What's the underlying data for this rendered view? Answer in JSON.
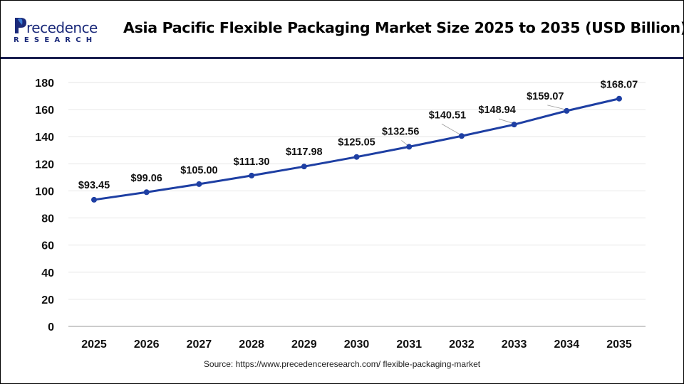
{
  "logo": {
    "name": "Precedence",
    "sub": "RESEARCH"
  },
  "title": "Asia Pacific Flexible Packaging Market Size 2025 to 2035 (USD Billion)",
  "source": "Source: https://www.precedenceresearch.com/ flexible-packaging-market",
  "colors": {
    "line": "#1e3fa3",
    "header_rule": "#1a1f4f",
    "logo": "#1b2a7a"
  },
  "chart_data": {
    "type": "line",
    "title": "Asia Pacific Flexible Packaging Market Size 2025 to 2035 (USD Billion)",
    "categories": [
      "2025",
      "2026",
      "2027",
      "2028",
      "2029",
      "2030",
      "2031",
      "2032",
      "2033",
      "2034",
      "2035"
    ],
    "values": [
      93.45,
      99.06,
      105.0,
      111.3,
      117.98,
      125.05,
      132.56,
      140.51,
      148.94,
      159.07,
      168.07
    ],
    "data_labels": [
      "$93.45",
      "$99.06",
      "$105.00",
      "$111.30",
      "$117.98",
      "$125.05",
      "$132.56",
      "$140.51",
      "$148.94",
      "$159.07",
      "$168.07"
    ],
    "ylim": [
      0,
      180
    ],
    "yticks": [
      "0",
      "20",
      "40",
      "60",
      "80",
      "100",
      "120",
      "140",
      "160",
      "180"
    ],
    "grid": true,
    "legend": "none",
    "xlabel": "",
    "ylabel": ""
  }
}
